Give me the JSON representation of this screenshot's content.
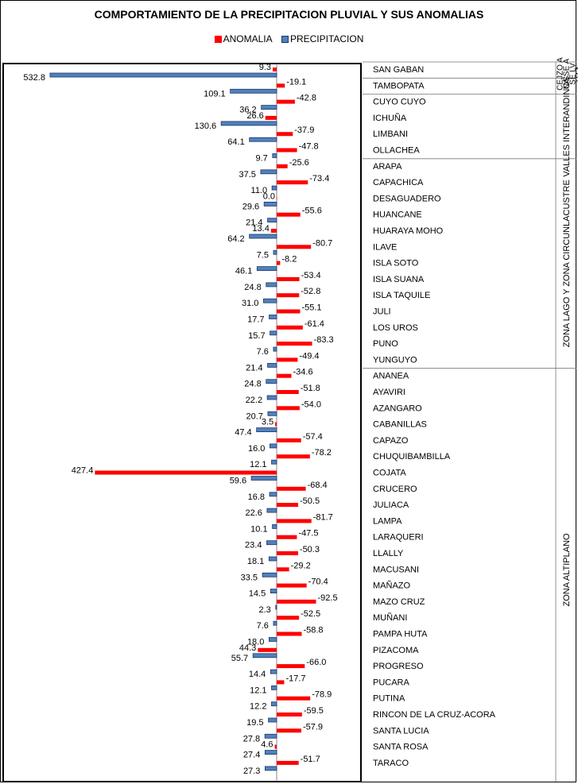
{
  "chart_data": {
    "type": "bar",
    "title": "COMPORTAMIENTO DE LA PRECIPITACION PLUVIAL Y SUS ANOMALIAS",
    "orientation": "horizontal",
    "colors": {
      "anomalia": "#ff0000",
      "precipitacion": "#4f81bd",
      "precip_border": "#1f3864"
    },
    "categories": [
      "SAN GABAN",
      "TAMBOPATA",
      "CUYO CUYO",
      "ICHUÑA",
      "LIMBANI",
      "OLLACHEA",
      "ARAPA",
      "CAPACHICA",
      "DESAGUADERO",
      "HUANCANE",
      "HUARAYA MOHO",
      "ILAVE",
      "ISLA SOTO",
      "ISLA SUANA",
      "ISLA TAQUILE",
      "JULI",
      "LOS UROS",
      "PUNO",
      "YUNGUYO",
      "ANANEA",
      "AYAVIRI",
      "AZANGARO",
      "CABANILLAS",
      "CAPAZO",
      "CHUQUIBAMBILLA",
      "COJATA",
      "CRUCERO",
      "JULIACA",
      "LAMPA",
      "LARAQUERI",
      "LLALLY",
      "MACUSANI",
      "MAÑAZO",
      "MAZO CRUZ",
      "MUÑANI",
      "PAMPA HUTA",
      "PIZACOMA",
      "PROGRESO",
      "PUCARA",
      "PUTINA",
      "RINCON DE LA CRUZ-ACORA",
      "SANTA LUCIA",
      "SANTA ROSA",
      "TARACO"
    ],
    "series": [
      {
        "name": "ANOMALIA",
        "values": [
          9.3,
          -19.1,
          -42.8,
          26.6,
          -37.9,
          -47.8,
          -25.6,
          -73.4,
          0.0,
          -55.6,
          13.4,
          -80.7,
          -8.2,
          -53.4,
          -52.8,
          -55.1,
          -61.4,
          -83.3,
          -49.4,
          -34.6,
          -51.8,
          -54.0,
          3.5,
          -57.4,
          -78.2,
          427.4,
          -68.4,
          -50.5,
          -81.7,
          -47.5,
          -50.3,
          -29.2,
          -70.4,
          -92.5,
          -52.5,
          -58.8,
          44.3,
          -66.0,
          -17.7,
          -78.9,
          -59.5,
          -57.9,
          4.6,
          -51.7
        ]
      },
      {
        "name": "PRECIPITACION",
        "values": [
          532.8,
          109.1,
          36.2,
          130.6,
          64.1,
          9.7,
          37.5,
          11.0,
          29.6,
          21.4,
          64.2,
          7.5,
          46.1,
          24.8,
          31.0,
          17.7,
          15.7,
          7.6,
          21.4,
          24.8,
          22.2,
          20.7,
          47.4,
          16.0,
          12.1,
          59.6,
          16.8,
          22.6,
          10.1,
          23.4,
          18.1,
          33.5,
          14.5,
          2.3,
          7.6,
          18.0,
          55.7,
          14.4,
          12.1,
          12.2,
          19.5,
          27.8,
          27.4,
          27.3
        ]
      }
    ],
    "anomaly_labels": [
      "9.3",
      "-19.1",
      "-42.8",
      "26.6",
      "-37.9",
      "-47.8",
      "-25.6",
      "-73.4",
      "0.0",
      "-55.6",
      "13.4",
      "-80.7",
      "-8.2",
      "-53.4",
      "-52.8",
      "-55.1",
      "-61.4",
      "-83.3",
      "-49.4",
      "-34.6",
      "-51.8",
      "-54.0",
      "3.5",
      "-57.4",
      "-78.2",
      "427.4",
      "-68.4",
      "-50.5",
      "-81.7",
      "-47.5",
      "-50.3",
      "-29.2",
      "-70.4",
      "-92.5",
      "-52.5",
      "-58.8",
      "44.3",
      "-66.0",
      "-17.7",
      "-78.9",
      "-59.5",
      "-57.9",
      "4.6",
      "-51.7"
    ],
    "precipitation_labels": [
      "532.8",
      "109.1",
      "36.2",
      "130.6",
      "64.1",
      "9.7",
      "37.5",
      "11.0",
      "29.6",
      "21.4",
      "64.2",
      "7.5",
      "46.1",
      "24.8",
      "31.0",
      "17.7",
      "15.7",
      "7.6",
      "21.4",
      "24.8",
      "22.2",
      "20.7",
      "47.4",
      "16.0",
      "12.1",
      "59.6",
      "16.8",
      "22.6",
      "10.1",
      "23.4",
      "18.1",
      "33.5",
      "14.5",
      "2.3",
      "7.6",
      "18.0",
      "55.7",
      "14.4",
      "12.1",
      "12.2",
      "19.5",
      "27.8",
      "27.4",
      "27.3"
    ],
    "regions": [
      {
        "label": "CEJZO A",
        "start": 0,
        "end": 0
      },
      {
        "label": "NA SE A",
        "start": 0,
        "end": 0
      },
      {
        "label": "SE LV",
        "start": 0,
        "end": 0
      },
      {
        "label": "LV A",
        "start": 0,
        "end": 0
      },
      {
        "label": "SE LV A",
        "start": 1,
        "end": 1
      },
      {
        "label": "VALLES INTERANDINOS",
        "start": 2,
        "end": 5
      },
      {
        "label": "ZONA LAGO Y ZONA CIRCUNLACUSTRE",
        "start": 6,
        "end": 18
      },
      {
        "label": "ZONA  ALTIPLANO",
        "start": 19,
        "end": 43
      }
    ],
    "legend": [
      "ANOMALIA",
      "PRECIPITACION"
    ],
    "legend_position": "top",
    "grid": false
  }
}
